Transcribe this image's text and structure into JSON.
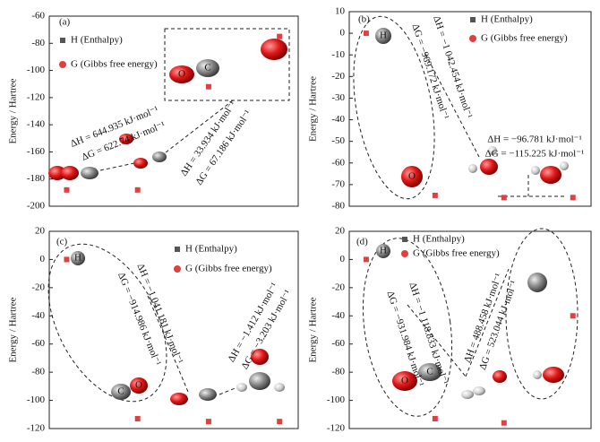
{
  "chart_data": [
    {
      "type": "scatter",
      "panel_label": "(a)",
      "y_label": "Energy / Hartree",
      "categories": [
        null,
        null,
        null,
        null
      ],
      "series": [
        {
          "name": "H (Enthalpy)",
          "color": "#555555",
          "values": [
            null,
            null,
            null,
            null
          ]
        },
        {
          "name": "G (Gibbs free energy)",
          "color": "#e04040",
          "values": [
            -188,
            -188,
            -112,
            -75
          ]
        }
      ],
      "ylim": [
        -200,
        -60
      ],
      "yticks": [
        -200,
        -180,
        -160,
        -140,
        -120,
        -100,
        -80,
        -60
      ],
      "annotations": [
        "ΔH = 644.935 kJ·mol⁻¹",
        "ΔG = 622.74 kJ·mol⁻¹",
        "ΔH = 33.934 kJ·mol⁻¹",
        "ΔG = 67.186 kJ·mol⁻¹"
      ],
      "atom_labels": [
        "O",
        "C"
      ]
    },
    {
      "type": "scatter",
      "panel_label": "(b)",
      "y_label": "Energy / Hartree",
      "categories": [
        null,
        null,
        null,
        null
      ],
      "series": [
        {
          "name": "H (Enthalpy)",
          "color": "#555555",
          "values": [
            null,
            null,
            null,
            null
          ]
        },
        {
          "name": "G (Gibbs free energy)",
          "color": "#e04040",
          "values": [
            0,
            -75,
            -76,
            -76
          ]
        }
      ],
      "ylim": [
        -80,
        10
      ],
      "yticks": [
        -80,
        -70,
        -60,
        -50,
        -40,
        -30,
        -20,
        -10,
        0,
        10
      ],
      "annotations": [
        "ΔH = −1 042.454 kJ·mol⁻¹",
        "ΔG = −969.172 kJ·mol⁻¹",
        "ΔH = −96.781 kJ·mol⁻¹",
        "ΔG = −115.225 kJ·mol⁻¹"
      ],
      "atom_labels": [
        "H",
        "O"
      ]
    },
    {
      "type": "scatter",
      "panel_label": "(c)",
      "y_label": "Energy / Hartree",
      "categories": [
        null,
        null,
        null,
        null
      ],
      "series": [
        {
          "name": "H (Enthalpy)",
          "color": "#555555",
          "values": [
            null,
            null,
            null,
            null
          ]
        },
        {
          "name": "G (Gibbs free energy)",
          "color": "#e04040",
          "values": [
            0,
            -113,
            -115,
            -115
          ]
        }
      ],
      "ylim": [
        -120,
        20
      ],
      "yticks": [
        -120,
        -100,
        -80,
        -60,
        -40,
        -20,
        0,
        20
      ],
      "annotations": [
        "ΔH = −1 041.181 kJ·mol⁻¹",
        "ΔG = −914.986 kJ·mol⁻¹",
        "ΔH = −1.412 kJ·mol⁻¹",
        "ΔG = −3.203 kJ·mol⁻¹"
      ],
      "atom_labels": [
        "H",
        "C",
        "O"
      ]
    },
    {
      "type": "scatter",
      "panel_label": "(d)",
      "y_label": "Energy / Hartree",
      "categories": [
        null,
        null,
        null,
        null
      ],
      "series": [
        {
          "name": "H (Enthalpy)",
          "color": "#555555",
          "values": [
            null,
            null,
            null,
            null
          ]
        },
        {
          "name": "G (Gibbs free energy)",
          "color": "#e04040",
          "values": [
            0,
            -113,
            -116,
            -40
          ]
        }
      ],
      "ylim": [
        -120,
        20
      ],
      "yticks": [
        -120,
        -100,
        -80,
        -60,
        -40,
        -20,
        0,
        20
      ],
      "annotations": [
        "ΔH = −1 118.833 kJ·mol⁻¹",
        "ΔG = −931.984 kJ·mol⁻¹",
        "ΔH = 488.458 kJ·mol⁻¹",
        "ΔG = 523.044 kJ·mol⁻¹"
      ],
      "atom_labels": [
        "H",
        "O",
        "C"
      ]
    }
  ]
}
